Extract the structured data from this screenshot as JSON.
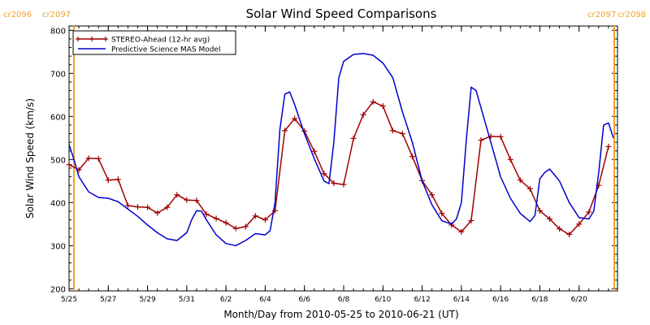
{
  "chart_data": {
    "type": "line",
    "title": "Solar Wind Speed Comparisons",
    "xlabel": "Month/Day from 2010-05-25 to 2010-06-21 (UT)",
    "ylabel": "Solar Wind Speed (km/s)",
    "x_unit": "date (UT)",
    "xlim": [
      "2010-05-25T00:00",
      "2010-06-21T23:00"
    ],
    "ylim": [
      195,
      810
    ],
    "yticks": [
      200,
      300,
      400,
      500,
      600,
      700,
      800
    ],
    "xticks": [
      {
        "date": "2010-05-25",
        "label": "5/25"
      },
      {
        "date": "2010-05-27",
        "label": "5/27"
      },
      {
        "date": "2010-05-29",
        "label": "5/29"
      },
      {
        "date": "2010-05-31",
        "label": "5/31"
      },
      {
        "date": "2010-06-02",
        "label": "6/2"
      },
      {
        "date": "2010-06-04",
        "label": "6/4"
      },
      {
        "date": "2010-06-06",
        "label": "6/6"
      },
      {
        "date": "2010-06-08",
        "label": "6/8"
      },
      {
        "date": "2010-06-10",
        "label": "6/10"
      },
      {
        "date": "2010-06-12",
        "label": "6/12"
      },
      {
        "date": "2010-06-14",
        "label": "6/14"
      },
      {
        "date": "2010-06-16",
        "label": "6/16"
      },
      {
        "date": "2010-06-18",
        "label": "6/18"
      },
      {
        "date": "2010-06-20",
        "label": "6/20"
      }
    ],
    "carrington_markers": [
      {
        "date": "2010-05-25T06:00",
        "left_label": "cr2096",
        "right_label": "cr2097",
        "side": "left"
      },
      {
        "date": "2010-06-21T19:00",
        "left_label": "cr2097",
        "right_label": "cr2098",
        "side": "right"
      }
    ],
    "legend_position": "top-left",
    "grid": false,
    "series": [
      {
        "name": "STEREO-Ahead (12-hr avg)",
        "color": "#a00000",
        "marker": "plus",
        "points": [
          [
            "2010-05-25T00:00",
            488
          ],
          [
            "2010-05-25T12:00",
            476
          ],
          [
            "2010-05-26T00:00",
            503
          ],
          [
            "2010-05-26T12:00",
            502
          ],
          [
            "2010-05-27T00:00",
            452
          ],
          [
            "2010-05-27T12:00",
            454
          ],
          [
            "2010-05-28T00:00",
            393
          ],
          [
            "2010-05-28T12:00",
            390
          ],
          [
            "2010-05-29T00:00",
            389
          ],
          [
            "2010-05-29T12:00",
            376
          ],
          [
            "2010-05-30T00:00",
            389
          ],
          [
            "2010-05-30T12:00",
            418
          ],
          [
            "2010-05-31T00:00",
            406
          ],
          [
            "2010-05-31T12:00",
            405
          ],
          [
            "2010-06-01T00:00",
            373
          ],
          [
            "2010-06-01T12:00",
            363
          ],
          [
            "2010-06-02T00:00",
            353
          ],
          [
            "2010-06-02T12:00",
            340
          ],
          [
            "2010-06-03T00:00",
            344
          ],
          [
            "2010-06-03T12:00",
            369
          ],
          [
            "2010-06-04T00:00",
            360
          ],
          [
            "2010-06-04T12:00",
            381
          ],
          [
            "2010-06-05T00:00",
            567
          ],
          [
            "2010-06-05T12:00",
            595
          ],
          [
            "2010-06-06T00:00",
            566
          ],
          [
            "2010-06-06T12:00",
            519
          ],
          [
            "2010-06-07T00:00",
            467
          ],
          [
            "2010-06-07T12:00",
            445
          ],
          [
            "2010-06-08T00:00",
            442
          ],
          [
            "2010-06-08T12:00",
            549
          ],
          [
            "2010-06-09T00:00",
            604
          ],
          [
            "2010-06-09T12:00",
            634
          ],
          [
            "2010-06-10T00:00",
            624
          ],
          [
            "2010-06-10T12:00",
            567
          ],
          [
            "2010-06-11T00:00",
            560
          ],
          [
            "2010-06-11T12:00",
            507
          ],
          [
            "2010-06-12T00:00",
            451
          ],
          [
            "2010-06-12T12:00",
            418
          ],
          [
            "2010-06-13T00:00",
            375
          ],
          [
            "2010-06-13T12:00",
            348
          ],
          [
            "2010-06-14T00:00",
            332
          ],
          [
            "2010-06-14T12:00",
            358
          ],
          [
            "2010-06-15T00:00",
            545
          ],
          [
            "2010-06-15T12:00",
            554
          ],
          [
            "2010-06-16T00:00",
            553
          ],
          [
            "2010-06-16T12:00",
            500
          ],
          [
            "2010-06-17T00:00",
            452
          ],
          [
            "2010-06-17T12:00",
            432
          ],
          [
            "2010-06-18T00:00",
            381
          ],
          [
            "2010-06-18T12:00",
            362
          ],
          [
            "2010-06-19T00:00",
            339
          ],
          [
            "2010-06-19T12:00",
            326
          ],
          [
            "2010-06-20T00:00",
            350
          ],
          [
            "2010-06-20T12:00",
            378
          ],
          [
            "2010-06-21T00:00",
            440
          ],
          [
            "2010-06-21T12:00",
            530
          ]
        ]
      },
      {
        "name": "Predictive Science MAS Model",
        "color": "#0000cc",
        "marker": "none",
        "points": [
          [
            "2010-05-25T00:00",
            535
          ],
          [
            "2010-05-25T06:00",
            500
          ],
          [
            "2010-05-25T12:00",
            460
          ],
          [
            "2010-05-26T00:00",
            425
          ],
          [
            "2010-05-26T12:00",
            412
          ],
          [
            "2010-05-27T00:00",
            410
          ],
          [
            "2010-05-27T12:00",
            402
          ],
          [
            "2010-05-28T00:00",
            385
          ],
          [
            "2010-05-28T12:00",
            368
          ],
          [
            "2010-05-29T00:00",
            348
          ],
          [
            "2010-05-29T12:00",
            330
          ],
          [
            "2010-05-30T00:00",
            316
          ],
          [
            "2010-05-30T12:00",
            312
          ],
          [
            "2010-05-31T00:00",
            330
          ],
          [
            "2010-05-31T06:00",
            360
          ],
          [
            "2010-05-31T12:00",
            381
          ],
          [
            "2010-05-31T18:00",
            380
          ],
          [
            "2010-06-01T00:00",
            360
          ],
          [
            "2010-06-01T12:00",
            325
          ],
          [
            "2010-06-02T00:00",
            305
          ],
          [
            "2010-06-02T12:00",
            300
          ],
          [
            "2010-06-03T00:00",
            312
          ],
          [
            "2010-06-03T12:00",
            328
          ],
          [
            "2010-06-04T00:00",
            325
          ],
          [
            "2010-06-04T06:00",
            335
          ],
          [
            "2010-06-04T12:00",
            400
          ],
          [
            "2010-06-04T18:00",
            570
          ],
          [
            "2010-06-05T00:00",
            652
          ],
          [
            "2010-06-05T06:00",
            657
          ],
          [
            "2010-06-05T12:00",
            628
          ],
          [
            "2010-06-06T00:00",
            560
          ],
          [
            "2010-06-06T12:00",
            502
          ],
          [
            "2010-06-07T00:00",
            450
          ],
          [
            "2010-06-07T06:00",
            444
          ],
          [
            "2010-06-07T12:00",
            540
          ],
          [
            "2010-06-07T18:00",
            690
          ],
          [
            "2010-06-08T00:00",
            728
          ],
          [
            "2010-06-08T12:00",
            744
          ],
          [
            "2010-06-09T00:00",
            746
          ],
          [
            "2010-06-09T12:00",
            742
          ],
          [
            "2010-06-10T00:00",
            724
          ],
          [
            "2010-06-10T12:00",
            690
          ],
          [
            "2010-06-11T00:00",
            610
          ],
          [
            "2010-06-11T12:00",
            540
          ],
          [
            "2010-06-12T00:00",
            450
          ],
          [
            "2010-06-12T12:00",
            395
          ],
          [
            "2010-06-13T00:00",
            358
          ],
          [
            "2010-06-13T12:00",
            350
          ],
          [
            "2010-06-13T18:00",
            362
          ],
          [
            "2010-06-14T00:00",
            400
          ],
          [
            "2010-06-14T06:00",
            545
          ],
          [
            "2010-06-14T12:00",
            668
          ],
          [
            "2010-06-14T18:00",
            660
          ],
          [
            "2010-06-15T00:00",
            620
          ],
          [
            "2010-06-15T12:00",
            540
          ],
          [
            "2010-06-16T00:00",
            460
          ],
          [
            "2010-06-16T12:00",
            410
          ],
          [
            "2010-06-17T00:00",
            375
          ],
          [
            "2010-06-17T12:00",
            356
          ],
          [
            "2010-06-17T18:00",
            370
          ],
          [
            "2010-06-18T00:00",
            455
          ],
          [
            "2010-06-18T06:00",
            470
          ],
          [
            "2010-06-18T12:00",
            478
          ],
          [
            "2010-06-19T00:00",
            450
          ],
          [
            "2010-06-19T12:00",
            400
          ],
          [
            "2010-06-20T00:00",
            365
          ],
          [
            "2010-06-20T12:00",
            362
          ],
          [
            "2010-06-20T18:00",
            380
          ],
          [
            "2010-06-21T00:00",
            470
          ],
          [
            "2010-06-21T06:00",
            580
          ],
          [
            "2010-06-21T12:00",
            585
          ],
          [
            "2010-06-21T18:00",
            550
          ]
        ]
      }
    ]
  }
}
